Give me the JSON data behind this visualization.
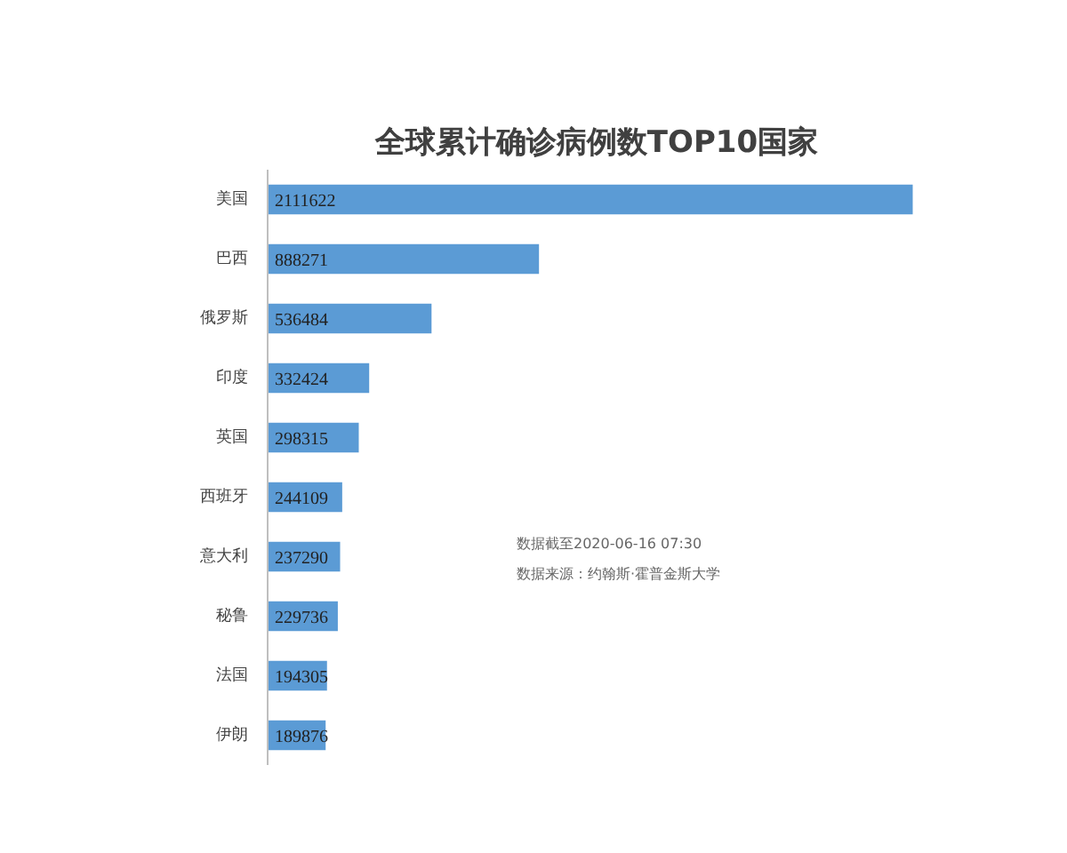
{
  "chart_data": {
    "type": "bar",
    "orientation": "horizontal",
    "title": "全球累计确诊病例数TOP10国家",
    "categories": [
      "美国",
      "巴西",
      "俄罗斯",
      "印度",
      "英国",
      "西班牙",
      "意大利",
      "秘鲁",
      "法国",
      "伊朗"
    ],
    "values": [
      2111622,
      888271,
      536484,
      332424,
      298315,
      244109,
      237290,
      229736,
      194305,
      189876
    ],
    "color": "#5b9bd5",
    "data_labels": true,
    "grid": false,
    "annotations": [
      "数据截至2020-06-16 07:30",
      "数据来源：约翰斯·霍普金斯大学"
    ]
  }
}
